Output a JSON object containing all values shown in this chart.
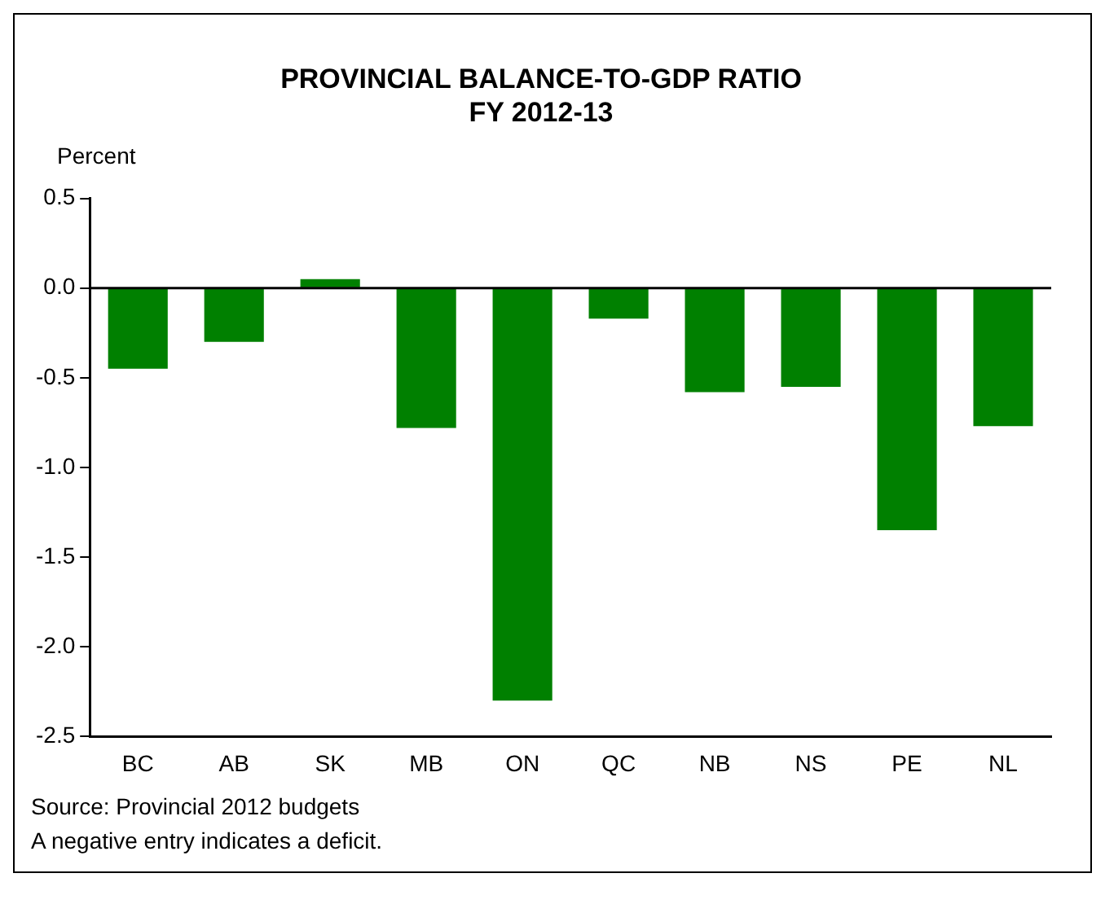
{
  "chart_data": {
    "type": "bar",
    "title": "PROVINCIAL BALANCE-TO-GDP RATIO\nFY 2012-13",
    "ylabel": "Percent",
    "categories": [
      "BC",
      "AB",
      "SK",
      "MB",
      "ON",
      "QC",
      "NB",
      "NS",
      "PE",
      "NL"
    ],
    "values": [
      -0.45,
      -0.3,
      0.05,
      -0.78,
      -2.3,
      -0.17,
      -0.58,
      -0.55,
      -1.35,
      -0.77
    ],
    "color": "#008000",
    "ylim": [
      -2.5,
      0.5
    ],
    "yticks": [
      {
        "value": 0.5,
        "label": "0.5"
      },
      {
        "value": 0,
        "label": "0.0"
      },
      {
        "value": -0.5,
        "label": "-0.5"
      },
      {
        "value": -1,
        "label": "-1.0"
      },
      {
        "value": -1.5,
        "label": "-1.5"
      },
      {
        "value": -2,
        "label": "-2.0"
      },
      {
        "value": -2.5,
        "label": "-2.5"
      }
    ],
    "grid": false,
    "legend": false,
    "ref_lines": [
      {
        "axis": "y",
        "value": 0,
        "color": "#000000"
      }
    ],
    "annotations": [
      "Source: Provincial 2012 budgets",
      "A negative entry indicates a deficit."
    ]
  }
}
